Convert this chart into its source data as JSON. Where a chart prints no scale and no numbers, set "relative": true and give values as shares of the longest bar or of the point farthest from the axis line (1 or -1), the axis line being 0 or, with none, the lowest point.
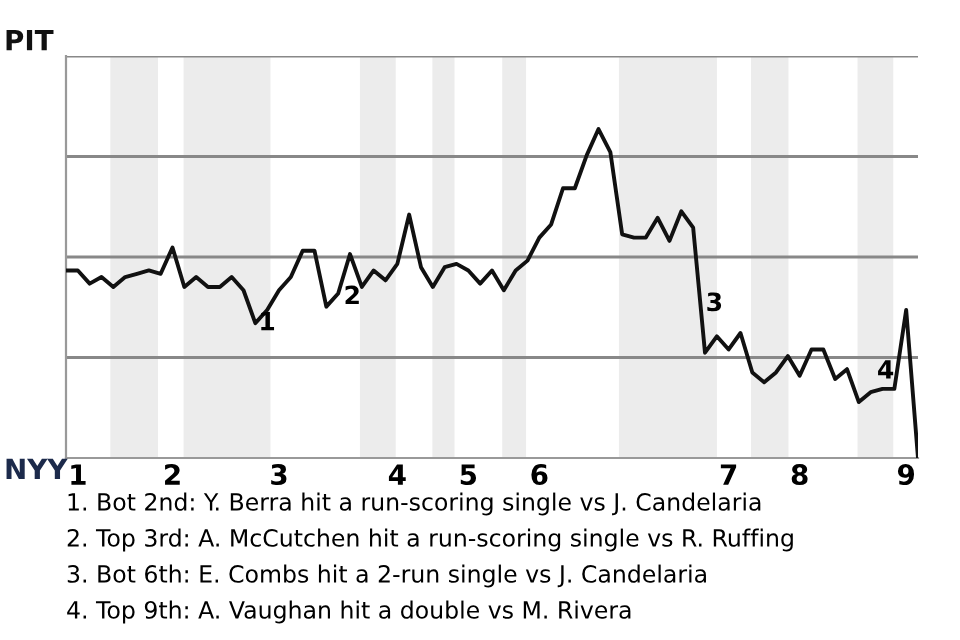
{
  "chart_data": {
    "type": "line",
    "relative": true,
    "categories": [
      null,
      "1",
      null,
      null,
      null,
      null,
      null,
      null,
      null,
      "2",
      null,
      null,
      null,
      null,
      null,
      null,
      null,
      null,
      "3",
      null,
      null,
      null,
      null,
      null,
      null,
      null,
      null,
      null,
      "4",
      null,
      null,
      null,
      null,
      null,
      "5",
      null,
      null,
      null,
      null,
      null,
      "6",
      null,
      null,
      null,
      null,
      null,
      null,
      null,
      null,
      null,
      null,
      null,
      null,
      null,
      null,
      null,
      "7",
      null,
      null,
      null,
      null,
      null,
      "8",
      null,
      null,
      null,
      null,
      null,
      null,
      null,
      null,
      "9",
      null
    ],
    "series": [
      {
        "color": "#111111",
        "values": [
          0.57,
          0.57,
          0.53,
          0.55,
          0.52,
          0.55,
          0.56,
          0.57,
          0.56,
          0.64,
          0.52,
          0.55,
          0.52,
          0.52,
          0.55,
          0.51,
          0.41,
          0.45,
          0.51,
          0.55,
          0.63,
          0.63,
          0.46,
          0.5,
          0.62,
          0.52,
          0.57,
          0.54,
          0.59,
          0.74,
          0.58,
          0.52,
          0.58,
          0.59,
          0.57,
          0.53,
          0.57,
          0.51,
          0.57,
          0.6,
          0.67,
          0.71,
          0.82,
          0.82,
          0.92,
          1,
          0.93,
          0.68,
          0.67,
          0.67,
          0.73,
          0.66,
          0.75,
          0.7,
          0.32,
          0.37,
          0.33,
          0.38,
          0.26,
          0.23,
          0.26,
          0.31,
          0.25,
          0.33,
          0.33,
          0.24,
          0.27,
          0.17,
          0.2,
          0.21,
          0.21,
          0.45,
          0
        ]
      }
    ],
    "grid": "y",
    "marker": "none",
    "line_style": "solid",
    "annotations": [
      "PIT",
      "NYY",
      "1",
      "2",
      "3",
      "4",
      "1. Bot 2nd: Y. Berra hit a run-scoring single vs J. Candelaria",
      "2. Top 3rd: A. McCutchen hit a run-scoring single vs R. Ruffing",
      "3. Bot 6th: E. Combs hit a 2-run single vs J. Candelaria",
      "4. Top 9th: A. Vaughan hit a double vs M. Rivera"
    ]
  }
}
